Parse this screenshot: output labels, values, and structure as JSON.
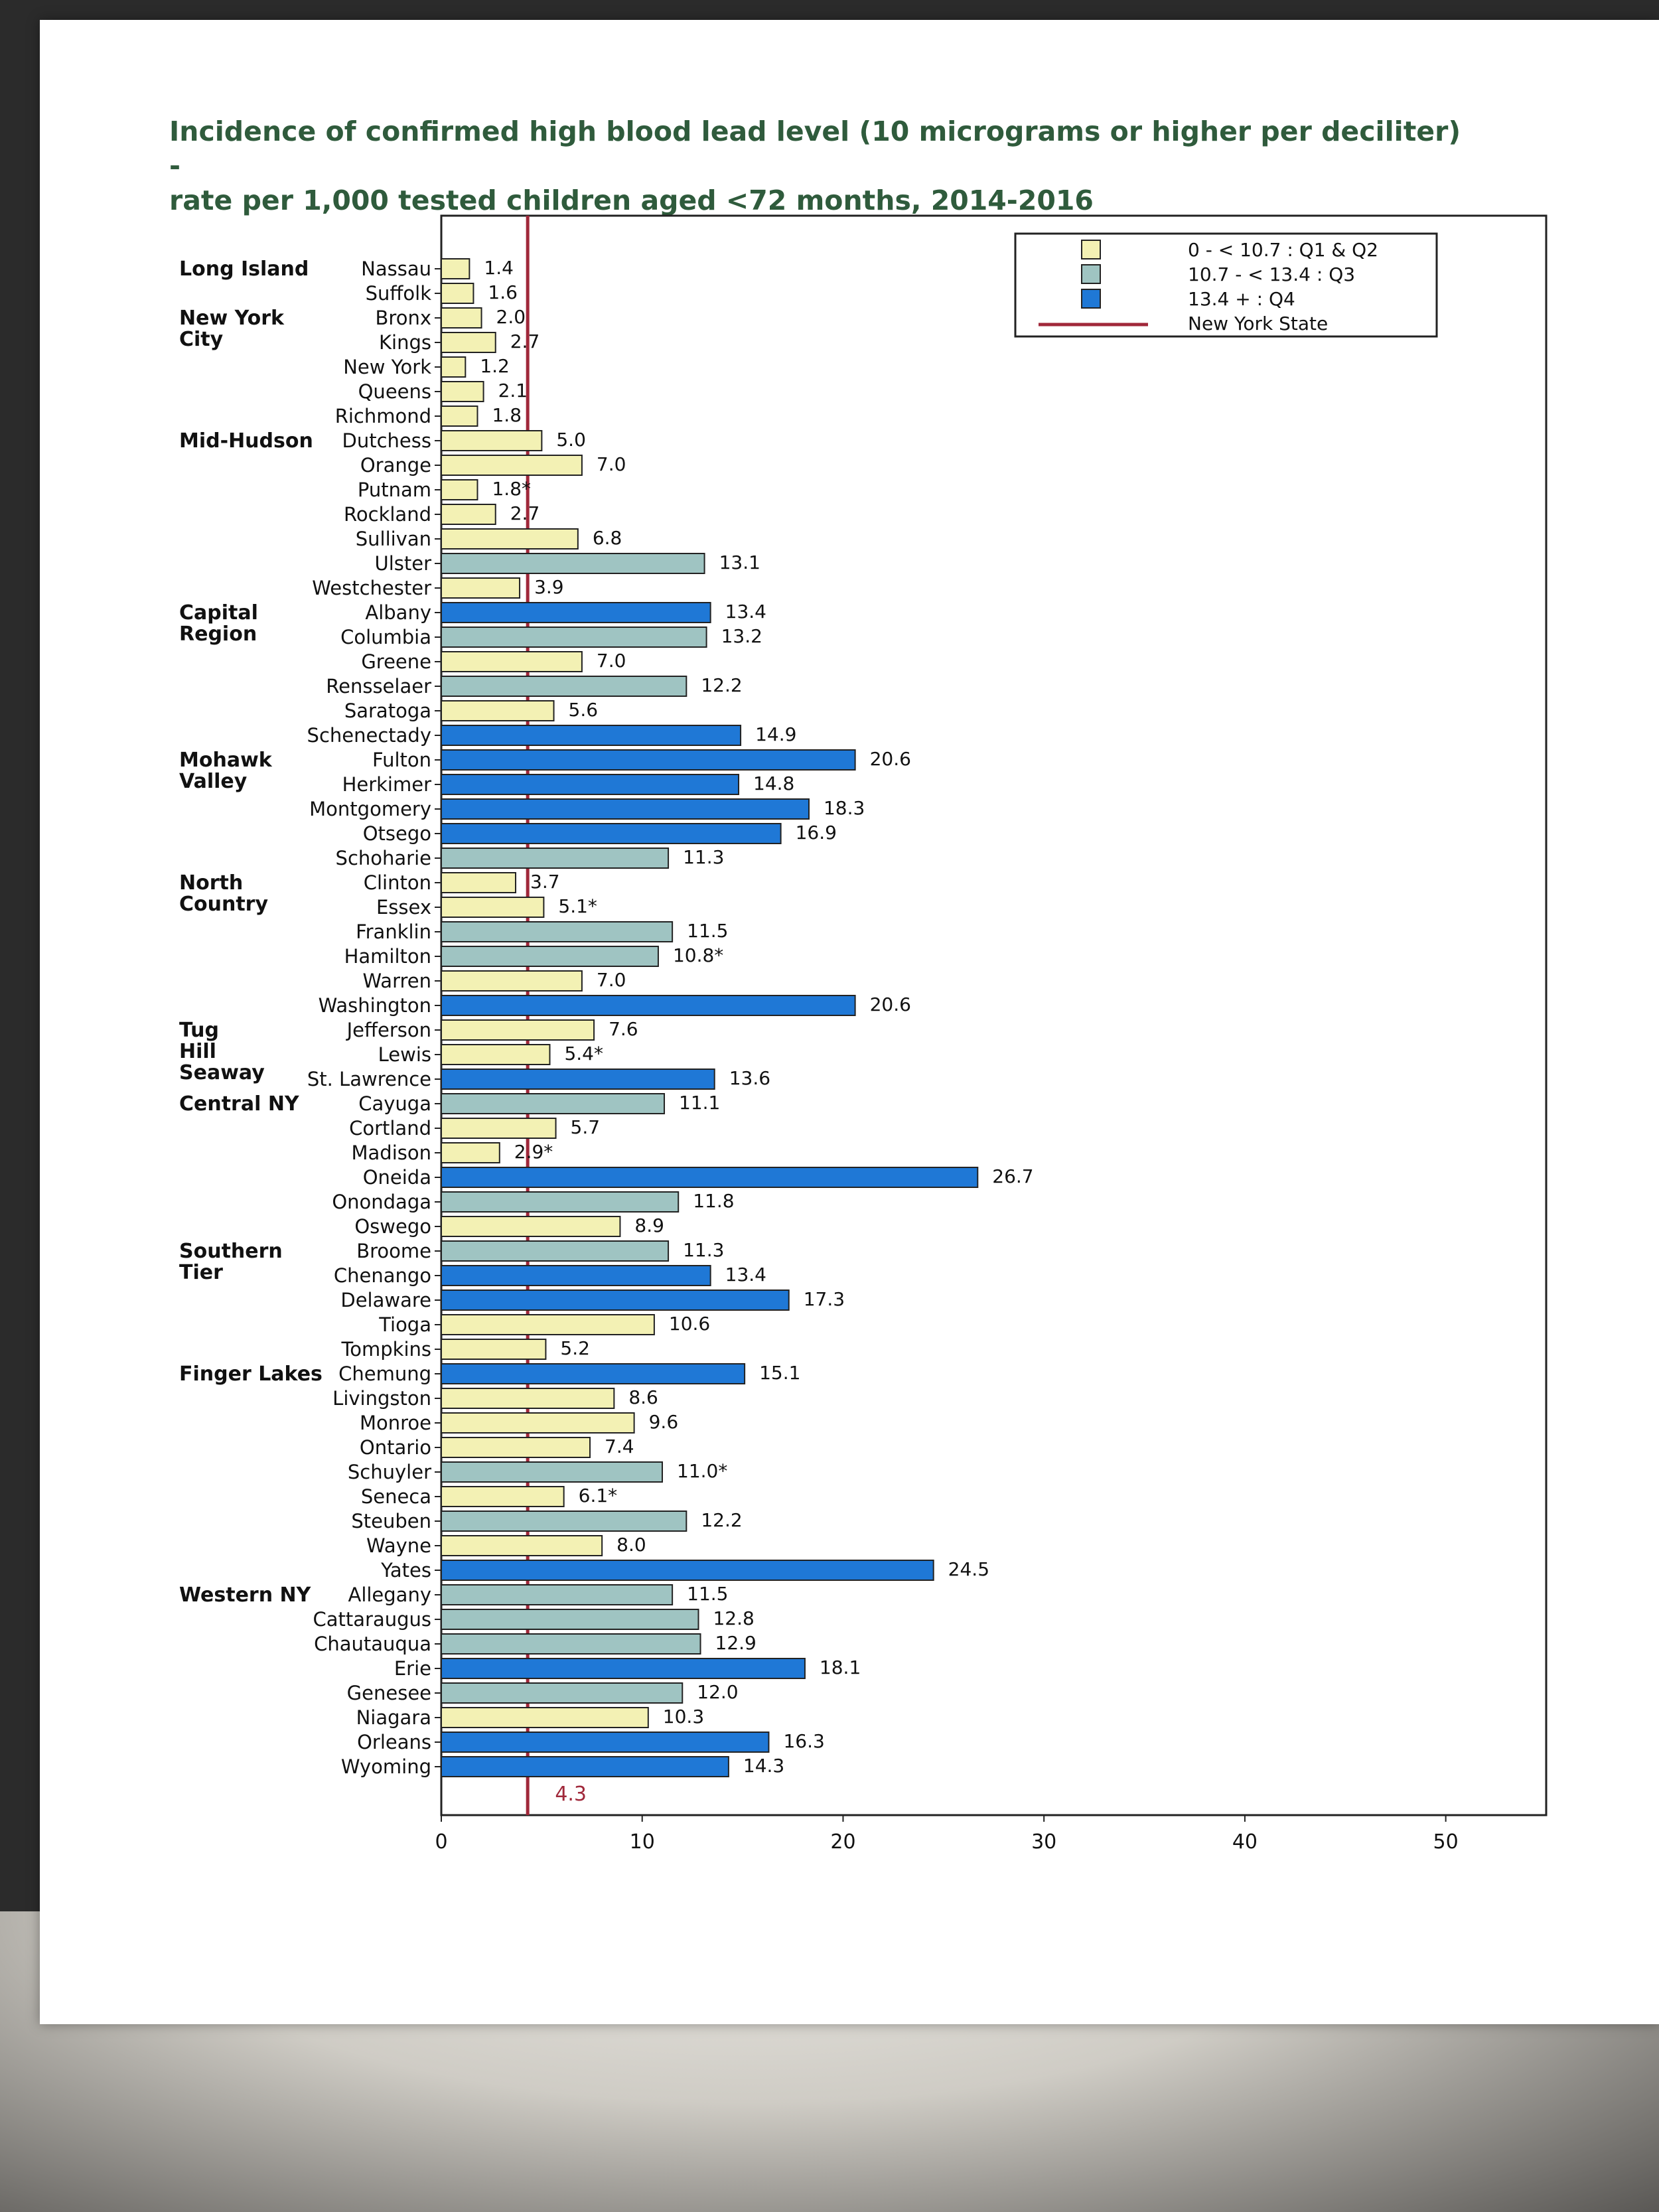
{
  "chart_data": {
    "type": "bar",
    "orientation": "horizontal",
    "title": [
      "Incidence of confirmed high blood lead level (10 micrograms or higher per deciliter) -",
      "rate per 1,000 tested children aged <72 months, 2014-2016"
    ],
    "xlim": [
      0,
      55
    ],
    "xticks": [
      0,
      10,
      20,
      30,
      40,
      50
    ],
    "grid": false,
    "legend_position": "top-right",
    "legend": [
      {
        "label": "0 - <   10.7  : Q1 & Q2",
        "color": "#f3f1b4"
      },
      {
        "label": "10.7 - <   13.4  : Q3",
        "color": "#9fc4c2"
      },
      {
        "label": "13.4 +   : Q4",
        "color": "#1f78d6"
      },
      {
        "label": "New York State",
        "color": "#a0283a",
        "kind": "line"
      }
    ],
    "colors": {
      "q12": "#f3f1b4",
      "q3": "#9fc4c2",
      "q4": "#1f78d6",
      "reference": "#a0283a",
      "edge": "#222222"
    },
    "reference_line": {
      "value": 4.3,
      "label": "4.3"
    },
    "regions": [
      {
        "name": "Long Island",
        "first": "Nassau"
      },
      {
        "name": "New York City",
        "first": "Bronx"
      },
      {
        "name": "Mid-Hudson",
        "first": "Dutchess"
      },
      {
        "name": "Capital Region",
        "first": "Albany"
      },
      {
        "name": "Mohawk Valley",
        "first": "Fulton"
      },
      {
        "name": "North Country",
        "first": "Clinton"
      },
      {
        "name": "Tug Hill Seaway",
        "first": "Jefferson"
      },
      {
        "name": "Central NY",
        "first": "Cayuga"
      },
      {
        "name": "Southern Tier",
        "first": "Broome"
      },
      {
        "name": "Finger Lakes",
        "first": "Chemung"
      },
      {
        "name": "Western NY",
        "first": "Allegany"
      }
    ],
    "bars": [
      {
        "county": "Nassau",
        "value": 1.4,
        "label": "1.4",
        "q": "q12"
      },
      {
        "county": "Suffolk",
        "value": 1.6,
        "label": "1.6",
        "q": "q12"
      },
      {
        "county": "Bronx",
        "value": 2.0,
        "label": "2.0",
        "q": "q12"
      },
      {
        "county": "Kings",
        "value": 2.7,
        "label": "2.7",
        "q": "q12"
      },
      {
        "county": "New York",
        "value": 1.2,
        "label": "1.2",
        "q": "q12"
      },
      {
        "county": "Queens",
        "value": 2.1,
        "label": "2.1",
        "q": "q12"
      },
      {
        "county": "Richmond",
        "value": 1.8,
        "label": "1.8",
        "q": "q12"
      },
      {
        "county": "Dutchess",
        "value": 5.0,
        "label": "5.0",
        "q": "q12"
      },
      {
        "county": "Orange",
        "value": 7.0,
        "label": "7.0",
        "q": "q12"
      },
      {
        "county": "Putnam",
        "value": 1.8,
        "label": "1.8*",
        "q": "q12"
      },
      {
        "county": "Rockland",
        "value": 2.7,
        "label": "2.7",
        "q": "q12"
      },
      {
        "county": "Sullivan",
        "value": 6.8,
        "label": "6.8",
        "q": "q12"
      },
      {
        "county": "Ulster",
        "value": 13.1,
        "label": "13.1",
        "q": "q3"
      },
      {
        "county": "Westchester",
        "value": 3.9,
        "label": "3.9",
        "q": "q12"
      },
      {
        "county": "Albany",
        "value": 13.4,
        "label": "13.4",
        "q": "q4"
      },
      {
        "county": "Columbia",
        "value": 13.2,
        "label": "13.2",
        "q": "q3"
      },
      {
        "county": "Greene",
        "value": 7.0,
        "label": "7.0",
        "q": "q12"
      },
      {
        "county": "Rensselaer",
        "value": 12.2,
        "label": "12.2",
        "q": "q3"
      },
      {
        "county": "Saratoga",
        "value": 5.6,
        "label": "5.6",
        "q": "q12"
      },
      {
        "county": "Schenectady",
        "value": 14.9,
        "label": "14.9",
        "q": "q4"
      },
      {
        "county": "Fulton",
        "value": 20.6,
        "label": "20.6",
        "q": "q4"
      },
      {
        "county": "Herkimer",
        "value": 14.8,
        "label": "14.8",
        "q": "q4"
      },
      {
        "county": "Montgomery",
        "value": 18.3,
        "label": "18.3",
        "q": "q4"
      },
      {
        "county": "Otsego",
        "value": 16.9,
        "label": "16.9",
        "q": "q4"
      },
      {
        "county": "Schoharie",
        "value": 11.3,
        "label": "11.3",
        "q": "q3"
      },
      {
        "county": "Clinton",
        "value": 3.7,
        "label": "3.7",
        "q": "q12"
      },
      {
        "county": "Essex",
        "value": 5.1,
        "label": "5.1*",
        "q": "q12"
      },
      {
        "county": "Franklin",
        "value": 11.5,
        "label": "11.5",
        "q": "q3"
      },
      {
        "county": "Hamilton",
        "value": 10.8,
        "label": "10.8*",
        "q": "q3"
      },
      {
        "county": "Warren",
        "value": 7.0,
        "label": "7.0",
        "q": "q12"
      },
      {
        "county": "Washington",
        "value": 20.6,
        "label": "20.6",
        "q": "q4"
      },
      {
        "county": "Jefferson",
        "value": 7.6,
        "label": "7.6",
        "q": "q12"
      },
      {
        "county": "Lewis",
        "value": 5.4,
        "label": "5.4*",
        "q": "q12"
      },
      {
        "county": "St. Lawrence",
        "value": 13.6,
        "label": "13.6",
        "q": "q4"
      },
      {
        "county": "Cayuga",
        "value": 11.1,
        "label": "11.1",
        "q": "q3"
      },
      {
        "county": "Cortland",
        "value": 5.7,
        "label": "5.7",
        "q": "q12"
      },
      {
        "county": "Madison",
        "value": 2.9,
        "label": "2.9*",
        "q": "q12"
      },
      {
        "county": "Oneida",
        "value": 26.7,
        "label": "26.7",
        "q": "q4"
      },
      {
        "county": "Onondaga",
        "value": 11.8,
        "label": "11.8",
        "q": "q3"
      },
      {
        "county": "Oswego",
        "value": 8.9,
        "label": "8.9",
        "q": "q12"
      },
      {
        "county": "Broome",
        "value": 11.3,
        "label": "11.3",
        "q": "q3"
      },
      {
        "county": "Chenango",
        "value": 13.4,
        "label": "13.4",
        "q": "q4"
      },
      {
        "county": "Delaware",
        "value": 17.3,
        "label": "17.3",
        "q": "q4"
      },
      {
        "county": "Tioga",
        "value": 10.6,
        "label": "10.6",
        "q": "q12"
      },
      {
        "county": "Tompkins",
        "value": 5.2,
        "label": "5.2",
        "q": "q12"
      },
      {
        "county": "Chemung",
        "value": 15.1,
        "label": "15.1",
        "q": "q4"
      },
      {
        "county": "Livingston",
        "value": 8.6,
        "label": "8.6",
        "q": "q12"
      },
      {
        "county": "Monroe",
        "value": 9.6,
        "label": "9.6",
        "q": "q12"
      },
      {
        "county": "Ontario",
        "value": 7.4,
        "label": "7.4",
        "q": "q12"
      },
      {
        "county": "Schuyler",
        "value": 11.0,
        "label": "11.0*",
        "q": "q3"
      },
      {
        "county": "Seneca",
        "value": 6.1,
        "label": "6.1*",
        "q": "q12"
      },
      {
        "county": "Steuben",
        "value": 12.2,
        "label": "12.2",
        "q": "q3"
      },
      {
        "county": "Wayne",
        "value": 8.0,
        "label": "8.0",
        "q": "q12"
      },
      {
        "county": "Yates",
        "value": 24.5,
        "label": "24.5",
        "q": "q4"
      },
      {
        "county": "Allegany",
        "value": 11.5,
        "label": "11.5",
        "q": "q3"
      },
      {
        "county": "Cattaraugus",
        "value": 12.8,
        "label": "12.8",
        "q": "q3"
      },
      {
        "county": "Chautauqua",
        "value": 12.9,
        "label": "12.9",
        "q": "q3"
      },
      {
        "county": "Erie",
        "value": 18.1,
        "label": "18.1",
        "q": "q4"
      },
      {
        "county": "Genesee",
        "value": 12.0,
        "label": "12.0",
        "q": "q3"
      },
      {
        "county": "Niagara",
        "value": 10.3,
        "label": "10.3",
        "q": "q12"
      },
      {
        "county": "Orleans",
        "value": 16.3,
        "label": "16.3",
        "q": "q4"
      },
      {
        "county": "Wyoming",
        "value": 14.3,
        "label": "14.3",
        "q": "q4"
      }
    ]
  }
}
